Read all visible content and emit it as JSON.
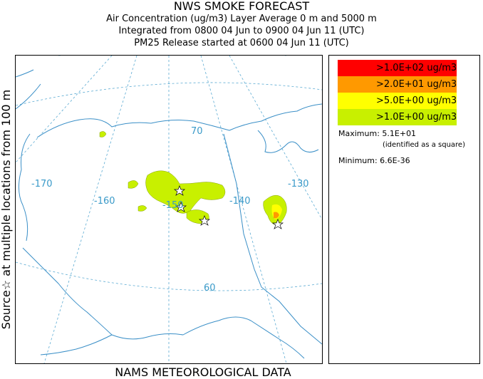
{
  "header": {
    "title": "NWS SMOKE FORECAST",
    "line1": "Air Concentration (ug/m3) Layer Average    0 m and  5000 m",
    "line2": "Integrated from 0800 04 Jun to 0900 04 Jun 11 (UTC)",
    "line3": "PM25 Release started at 0600 04 Jun 11 (UTC)"
  },
  "side_label": "Source☆ at multiple locations   from   100 m",
  "footer": "NAMS METEOROLOGICAL DATA",
  "map": {
    "lon_labels": [
      "-170",
      "-160",
      "-150",
      "-140",
      "-130"
    ],
    "lat_labels": [
      "70",
      "60"
    ],
    "colors": {
      "land": "#3a8fc7",
      "grid": "#5aaad2",
      "label": "#3a9ac9",
      "level1": "#c8f000",
      "level2": "#ffff00",
      "level3": "#ff9900",
      "level4": "#ff0000"
    }
  },
  "legend": {
    "items": [
      {
        "label": ">1.0E+02 ug/m3",
        "color": "#ff0000"
      },
      {
        "label": ">2.0E+01 ug/m3",
        "color": "#ff9900"
      },
      {
        "label": ">5.0E+00 ug/m3",
        "color": "#ffff00"
      },
      {
        "label": ">1.0E+00 ug/m3",
        "color": "#c8f000"
      }
    ],
    "maximum": "Maximum: 5.1E+01",
    "maximum_note": "(identified as a square)",
    "minimum": "Minimum: 6.6E-36"
  }
}
